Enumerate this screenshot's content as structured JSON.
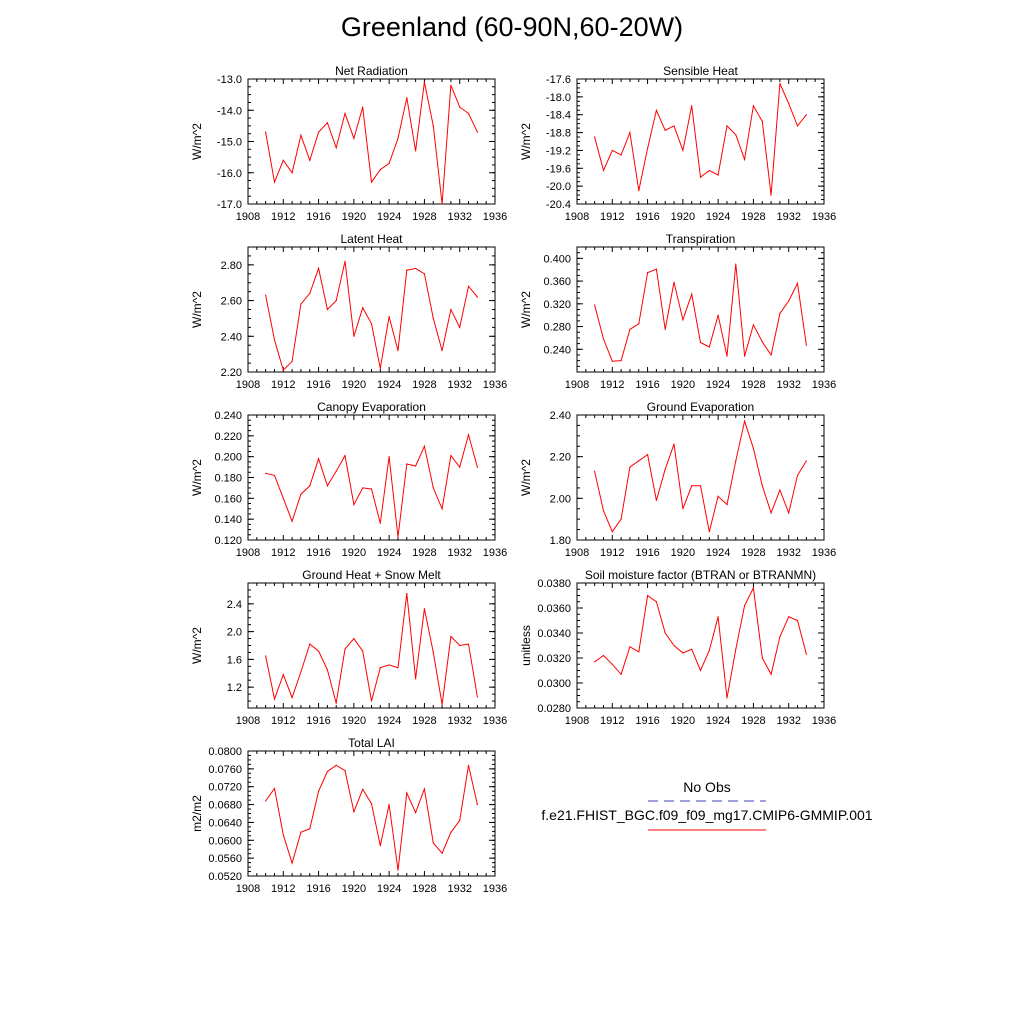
{
  "title": "Greenland (60-90N,60-20W)",
  "colors": {
    "model": "#ff0000",
    "obs": "#4040c0",
    "axis": "#000000"
  },
  "legend": {
    "obs_label": "No Obs",
    "model_label": "f.e21.FHIST_BGC.f09_f09_mg17.CMIP6-GMMIP.001"
  },
  "x_axis": {
    "range": [
      1908,
      1936
    ],
    "ticks": [
      1908,
      1912,
      1916,
      1920,
      1924,
      1928,
      1932,
      1936
    ]
  },
  "x_years": [
    1910,
    1911,
    1912,
    1913,
    1914,
    1915,
    1916,
    1917,
    1918,
    1919,
    1920,
    1921,
    1922,
    1923,
    1924,
    1925,
    1926,
    1927,
    1928,
    1929,
    1930,
    1931,
    1932,
    1933,
    1934
  ],
  "chart_data": [
    {
      "type": "line",
      "title": "Net Radiation",
      "ylabel": "W/m^2",
      "ylim": [
        -17.0,
        -13.0
      ],
      "yticks": [
        -17.0,
        -16.0,
        -15.0,
        -14.0,
        -13.0
      ],
      "decimals": 1,
      "series": [
        {
          "name": "f.e21.FHIST_BGC.f09_f09_mg17.CMIP6-GMMIP.001",
          "values": [
            -14.7,
            -16.3,
            -15.6,
            -16.0,
            -14.8,
            -15.6,
            -14.7,
            -14.4,
            -15.2,
            -14.1,
            -14.9,
            -13.9,
            -16.3,
            -15.9,
            -15.7,
            -14.9,
            -13.6,
            -15.3,
            -13.1,
            -14.5,
            -17.0,
            -13.2,
            -13.9,
            -14.1,
            -14.7
          ]
        }
      ]
    },
    {
      "type": "line",
      "title": "Sensible Heat",
      "ylabel": "W/m^2",
      "ylim": [
        -20.4,
        -17.6
      ],
      "yticks": [
        -20.4,
        -20.0,
        -19.6,
        -19.2,
        -18.8,
        -18.4,
        -18.0,
        -17.6
      ],
      "decimals": 1,
      "series": [
        {
          "name": "f.e21.FHIST_BGC.f09_f09_mg17.CMIP6-GMMIP.001",
          "values": [
            -18.9,
            -19.65,
            -19.2,
            -19.3,
            -18.8,
            -20.1,
            -19.15,
            -18.3,
            -18.75,
            -18.65,
            -19.2,
            -18.2,
            -19.8,
            -19.65,
            -19.75,
            -18.65,
            -18.85,
            -19.4,
            -18.2,
            -18.55,
            -20.2,
            -17.7,
            -18.15,
            -18.65,
            -18.4
          ]
        }
      ]
    },
    {
      "type": "line",
      "title": "Latent Heat",
      "ylabel": "W/m^2",
      "ylim": [
        2.2,
        2.9
      ],
      "yticks": [
        2.2,
        2.4,
        2.6,
        2.8
      ],
      "decimals": 2,
      "series": [
        {
          "name": "f.e21.FHIST_BGC.f09_f09_mg17.CMIP6-GMMIP.001",
          "values": [
            2.63,
            2.38,
            2.21,
            2.26,
            2.58,
            2.64,
            2.78,
            2.55,
            2.6,
            2.82,
            2.4,
            2.56,
            2.47,
            2.22,
            2.51,
            2.32,
            2.77,
            2.78,
            2.75,
            2.5,
            2.32,
            2.55,
            2.45,
            2.68,
            2.62
          ]
        }
      ]
    },
    {
      "type": "line",
      "title": "Transpiration",
      "ylabel": "W/m^2",
      "ylim": [
        0.2,
        0.42
      ],
      "yticks": [
        0.24,
        0.28,
        0.32,
        0.36,
        0.4
      ],
      "decimals": 3,
      "series": [
        {
          "name": "f.e21.FHIST_BGC.f09_f09_mg17.CMIP6-GMMIP.001",
          "values": [
            0.318,
            0.258,
            0.219,
            0.22,
            0.275,
            0.285,
            0.375,
            0.381,
            0.275,
            0.358,
            0.292,
            0.337,
            0.252,
            0.244,
            0.3,
            0.228,
            0.39,
            0.228,
            0.283,
            0.253,
            0.23,
            0.303,
            0.325,
            0.356,
            0.247
          ]
        }
      ]
    },
    {
      "type": "line",
      "title": "Canopy Evaporation",
      "ylabel": "W/m^2",
      "ylim": [
        0.12,
        0.24
      ],
      "yticks": [
        0.12,
        0.14,
        0.16,
        0.18,
        0.2,
        0.22,
        0.24
      ],
      "decimals": 3,
      "series": [
        {
          "name": "f.e21.FHIST_BGC.f09_f09_mg17.CMIP6-GMMIP.001",
          "values": [
            0.184,
            0.182,
            0.16,
            0.138,
            0.164,
            0.172,
            0.198,
            0.172,
            0.186,
            0.201,
            0.154,
            0.17,
            0.169,
            0.136,
            0.2,
            0.123,
            0.193,
            0.191,
            0.21,
            0.17,
            0.15,
            0.201,
            0.19,
            0.221,
            0.19
          ]
        }
      ]
    },
    {
      "type": "line",
      "title": "Ground Evaporation",
      "ylabel": "W/m^2",
      "ylim": [
        1.8,
        2.4
      ],
      "yticks": [
        1.8,
        2.0,
        2.2,
        2.4
      ],
      "decimals": 2,
      "series": [
        {
          "name": "f.e21.FHIST_BGC.f09_f09_mg17.CMIP6-GMMIP.001",
          "values": [
            2.13,
            1.94,
            1.84,
            1.9,
            2.15,
            2.18,
            2.21,
            1.99,
            2.14,
            2.26,
            1.95,
            2.06,
            2.06,
            1.84,
            2.01,
            1.97,
            2.18,
            2.37,
            2.24,
            2.06,
            1.93,
            2.04,
            1.93,
            2.11,
            2.18
          ]
        }
      ]
    },
    {
      "type": "line",
      "title": "Ground Heat + Snow Melt",
      "ylabel": "W/m^2",
      "ylim": [
        0.9,
        2.7
      ],
      "yticks": [
        1.2,
        1.6,
        2.0,
        2.4
      ],
      "decimals": 1,
      "series": [
        {
          "name": "f.e21.FHIST_BGC.f09_f09_mg17.CMIP6-GMMIP.001",
          "values": [
            1.65,
            1.03,
            1.38,
            1.05,
            1.42,
            1.82,
            1.72,
            1.45,
            0.97,
            1.75,
            1.9,
            1.72,
            1.0,
            1.48,
            1.52,
            1.48,
            2.55,
            1.32,
            2.33,
            1.7,
            0.95,
            1.93,
            1.8,
            1.82,
            1.06
          ]
        }
      ]
    },
    {
      "type": "line",
      "title": "Soil moisture factor (BTRAN or BTRANMN)",
      "ylabel": "unitless",
      "ylim": [
        0.028,
        0.038
      ],
      "yticks": [
        0.028,
        0.03,
        0.032,
        0.034,
        0.036,
        0.038
      ],
      "decimals": 4,
      "series": [
        {
          "name": "f.e21.FHIST_BGC.f09_f09_mg17.CMIP6-GMMIP.001",
          "values": [
            0.0317,
            0.0322,
            0.0315,
            0.0307,
            0.0329,
            0.0325,
            0.037,
            0.0365,
            0.034,
            0.033,
            0.0324,
            0.0327,
            0.031,
            0.0326,
            0.0353,
            0.0288,
            0.0327,
            0.0362,
            0.0376,
            0.032,
            0.0307,
            0.0337,
            0.0353,
            0.035,
            0.0323
          ]
        }
      ]
    },
    {
      "type": "line",
      "title": "Total LAI",
      "ylabel": "m2/m2",
      "ylim": [
        0.052,
        0.08
      ],
      "yticks": [
        0.052,
        0.056,
        0.06,
        0.064,
        0.068,
        0.072,
        0.076,
        0.08
      ],
      "decimals": 4,
      "series": [
        {
          "name": "f.e21.FHIST_BGC.f09_f09_mg17.CMIP6-GMMIP.001",
          "values": [
            0.0688,
            0.0716,
            0.0612,
            0.0549,
            0.0618,
            0.0626,
            0.071,
            0.0754,
            0.0768,
            0.0756,
            0.0664,
            0.0714,
            0.0682,
            0.0588,
            0.068,
            0.0533,
            0.0706,
            0.0662,
            0.0715,
            0.0594,
            0.0571,
            0.0618,
            0.0644,
            0.0768,
            0.068
          ]
        }
      ]
    }
  ]
}
